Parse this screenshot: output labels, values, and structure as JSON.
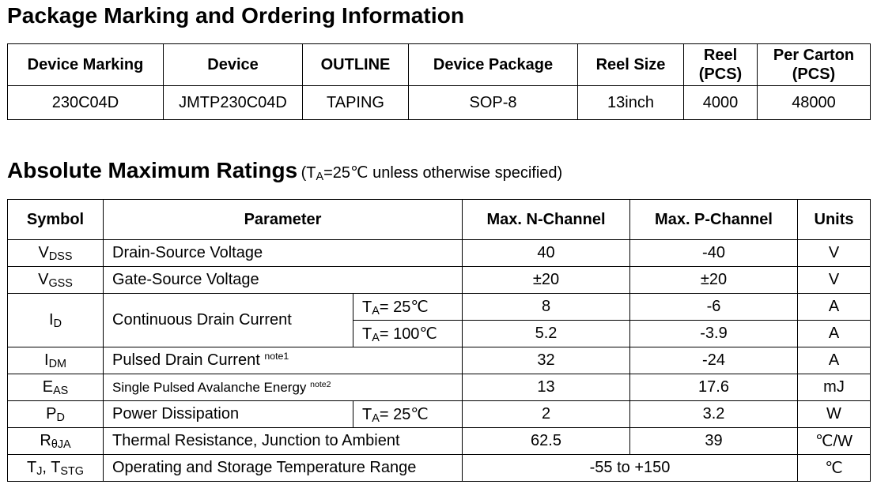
{
  "package_section": {
    "title": "Package Marking and Ordering Information",
    "headers": {
      "marking": "Device Marking",
      "device": "Device",
      "outline": "OUTLINE",
      "package": "Device Package",
      "reel_size": "Reel Size",
      "reel_l1": "Reel",
      "reel_l2": "(PCS)",
      "carton_l1": "Per Carton",
      "carton_l2": "(PCS)"
    },
    "row": {
      "marking": "230C04D",
      "device": "JMTP230C04D",
      "outline": "TAPING",
      "package": "SOP-8",
      "reel_size": "13inch",
      "reel": "4000",
      "carton": "48000"
    }
  },
  "ratings_section": {
    "title": "Absolute Maximum Ratings",
    "cond_open": "(T",
    "cond_sub": "A",
    "cond_rest": "=25℃ unless otherwise specified)",
    "headers": {
      "symbol": "Symbol",
      "parameter": "Parameter",
      "n_channel": "Max. N-Channel",
      "p_channel": "Max. P-Channel",
      "units": "Units"
    },
    "rows": {
      "vdss": {
        "sym": "V",
        "sub": "DSS",
        "param": "Drain-Source Voltage",
        "n": "40",
        "p": "-40",
        "unit": "V"
      },
      "vgss": {
        "sym": "V",
        "sub": "GSS",
        "param": "Gate-Source Voltage",
        "n": "±20",
        "p": "±20",
        "unit": "V"
      },
      "id": {
        "sym": "I",
        "sub": "D",
        "param": "Continuous Drain Current",
        "c1_pre": "T",
        "c1_sub": "A",
        "c1_val": "= 25℃",
        "n1": "8",
        "p1": "-6",
        "u1": "A",
        "c2_pre": "T",
        "c2_sub": "A",
        "c2_val": "= 100℃",
        "n2": "5.2",
        "p2": "-3.9",
        "u2": "A"
      },
      "idm": {
        "sym": "I",
        "sub": "DM",
        "param": "Pulsed Drain Current ",
        "note": "note1",
        "n": "32",
        "p": "-24",
        "unit": "A"
      },
      "eas": {
        "sym": "E",
        "sub": "AS",
        "param": "Single Pulsed Avalanche Energy ",
        "note": "note2",
        "n": "13",
        "p": "17.6",
        "unit": "mJ"
      },
      "pd": {
        "sym": "P",
        "sub": "D",
        "param": "Power Dissipation",
        "c_pre": "T",
        "c_sub": "A",
        "c_val": "= 25℃",
        "n": "2",
        "p": "3.2",
        "unit": "W"
      },
      "rthja": {
        "sym": "R",
        "sub": "θJA",
        "param": "Thermal Resistance, Junction to Ambient",
        "n": "62.5",
        "p": "39",
        "unit": "℃/W"
      },
      "tj": {
        "sym1": "T",
        "sub1": "J",
        "sep": ", ",
        "sym2": "T",
        "sub2": "STG",
        "param": "Operating and Storage Temperature Range",
        "val": "-55 to +150",
        "unit": "℃"
      }
    }
  }
}
